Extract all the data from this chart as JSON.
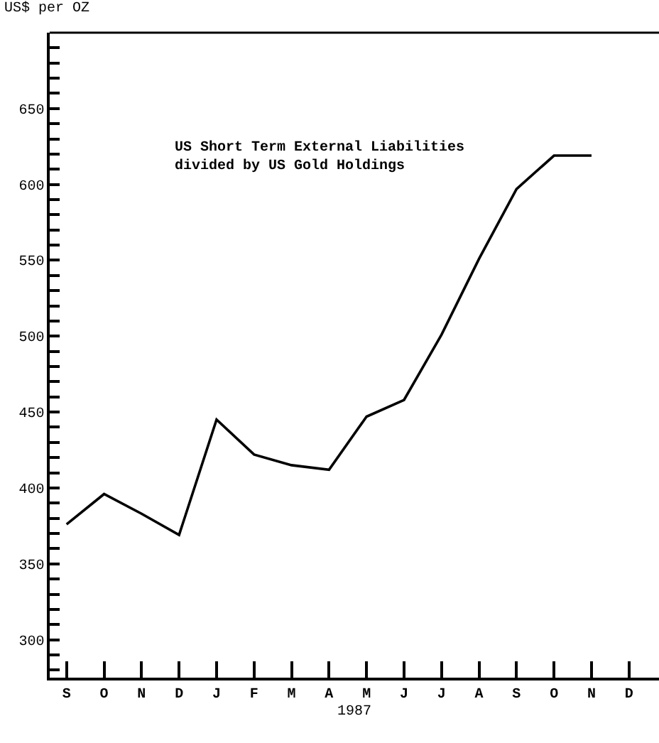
{
  "chart_data": {
    "type": "line",
    "ylabel": "US$ per OZ",
    "xlabel": "1987",
    "annotations": [
      "US Short Term External Liabilities\ndivided by US Gold Holdings"
    ],
    "categories": [
      "S",
      "O",
      "N",
      "D",
      "J",
      "F",
      "M",
      "A",
      "M",
      "J",
      "J",
      "A",
      "S",
      "O",
      "N",
      "D"
    ],
    "series": [
      {
        "color": "#000000",
        "values": [
          376,
          396,
          383,
          369,
          445,
          422,
          415,
          412,
          447,
          458,
          501,
          551,
          597,
          619,
          619,
          null
        ]
      }
    ],
    "ylim": [
      275,
      700
    ],
    "yticks": [
      {
        "value": 280,
        "label": null
      },
      {
        "value": 290,
        "label": null
      },
      300,
      {
        "value": 310,
        "label": null
      },
      {
        "value": 320,
        "label": null
      },
      {
        "value": 330,
        "label": null
      },
      {
        "value": 340,
        "label": null
      },
      350,
      {
        "value": 360,
        "label": null
      },
      {
        "value": 370,
        "label": null
      },
      {
        "value": 380,
        "label": null
      },
      {
        "value": 390,
        "label": null
      },
      400,
      {
        "value": 410,
        "label": null
      },
      {
        "value": 420,
        "label": null
      },
      {
        "value": 430,
        "label": null
      },
      {
        "value": 440,
        "label": null
      },
      450,
      {
        "value": 460,
        "label": null
      },
      {
        "value": 470,
        "label": null
      },
      {
        "value": 480,
        "label": null
      },
      {
        "value": 490,
        "label": null
      },
      500,
      {
        "value": 510,
        "label": null
      },
      {
        "value": 520,
        "label": null
      },
      {
        "value": 530,
        "label": null
      },
      {
        "value": 540,
        "label": null
      },
      550,
      {
        "value": 560,
        "label": null
      },
      {
        "value": 570,
        "label": null
      },
      {
        "value": 580,
        "label": null
      },
      {
        "value": 590,
        "label": null
      },
      600,
      {
        "value": 610,
        "label": null
      },
      {
        "value": 620,
        "label": null
      },
      {
        "value": 630,
        "label": null
      },
      {
        "value": 640,
        "label": null
      },
      650,
      {
        "value": 660,
        "label": null
      },
      {
        "value": 670,
        "label": null
      },
      {
        "value": 680,
        "label": null
      },
      {
        "value": 690,
        "label": null
      }
    ],
    "grid": false,
    "marker": "none",
    "line_style": "solid"
  }
}
